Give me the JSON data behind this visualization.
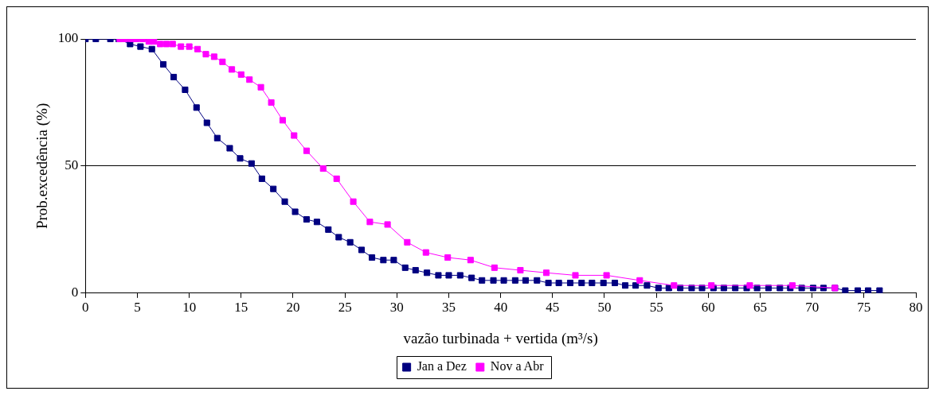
{
  "chart_data": {
    "type": "line",
    "xlabel": "vazão turbinada + vertida (m³/s)",
    "ylabel": "Prob.excedência (%)",
    "xlim": [
      0,
      80
    ],
    "xticks": [
      0,
      5,
      10,
      15,
      20,
      25,
      30,
      35,
      40,
      45,
      50,
      55,
      60,
      65,
      70,
      75,
      80
    ],
    "ylim": [
      0,
      100
    ],
    "yticks": [
      0,
      50,
      100
    ],
    "grid": "y",
    "legend": "bottom",
    "marker": "square",
    "line_style": "solid",
    "series": [
      {
        "name": "Jan a Dez",
        "color": "#000080",
        "x": [
          0,
          1,
          2.4,
          3.2,
          4.3,
          5.3,
          6.4,
          7.5,
          8.5,
          9.6,
          10.7,
          11.7,
          12.7,
          13.9,
          14.9,
          16,
          17,
          18.1,
          19.2,
          20.2,
          21.3,
          22.3,
          23.4,
          24.4,
          25.5,
          26.6,
          27.6,
          28.7,
          29.7,
          30.8,
          31.8,
          32.9,
          34,
          35,
          36.1,
          37.2,
          38.2,
          39.3,
          40.3,
          41.4,
          42.4,
          43.5,
          44.6,
          45.6,
          46.7,
          47.8,
          48.8,
          49.9,
          51,
          52,
          53,
          54.1,
          55.2,
          56.2,
          57.3,
          58.4,
          59.4,
          60.5,
          61.5,
          62.6,
          63.7,
          64.7,
          65.8,
          66.9,
          67.9,
          69,
          70.1,
          71.1,
          72.2,
          73.2,
          74.4,
          75.4,
          76.5
        ],
        "values": [
          100,
          100,
          100,
          100,
          98,
          97,
          96,
          90,
          85,
          80,
          73,
          67,
          61,
          57,
          53,
          51,
          45,
          41,
          36,
          32,
          29,
          28,
          25,
          22,
          20,
          17,
          14,
          13,
          13,
          10,
          9,
          8,
          7,
          7,
          7,
          6,
          5,
          5,
          5,
          5,
          5,
          5,
          4,
          4,
          4,
          4,
          4,
          4,
          4,
          3,
          3,
          3,
          2,
          2,
          2,
          2,
          2,
          2,
          2,
          2,
          2,
          2,
          2,
          2,
          2,
          2,
          2,
          2,
          2,
          1,
          1,
          1,
          1
        ]
      },
      {
        "name": "Nov a Abr",
        "color": "#ff00ff",
        "x": [
          3.3,
          3.8,
          4.4,
          4.9,
          5.5,
          6.1,
          6.6,
          7.2,
          7.8,
          8.4,
          9.2,
          10,
          10.8,
          11.6,
          12.4,
          13.2,
          14.1,
          15,
          15.8,
          16.9,
          17.9,
          19,
          20.1,
          21.3,
          22.9,
          24.2,
          25.8,
          27.4,
          29.1,
          31,
          32.8,
          34.9,
          37.1,
          39.4,
          41.9,
          44.4,
          47.2,
          50.2,
          53.4,
          56.7,
          60.3,
          64,
          68.1,
          72.2
        ],
        "values": [
          100,
          100,
          100,
          100,
          100,
          99,
          99,
          98,
          98,
          98,
          97,
          97,
          96,
          94,
          93,
          91,
          88,
          86,
          84,
          81,
          75,
          68,
          62,
          56,
          49,
          45,
          36,
          28,
          27,
          20,
          16,
          14,
          13,
          10,
          9,
          8,
          7,
          7,
          5,
          3,
          3,
          3,
          3,
          2
        ]
      }
    ]
  }
}
